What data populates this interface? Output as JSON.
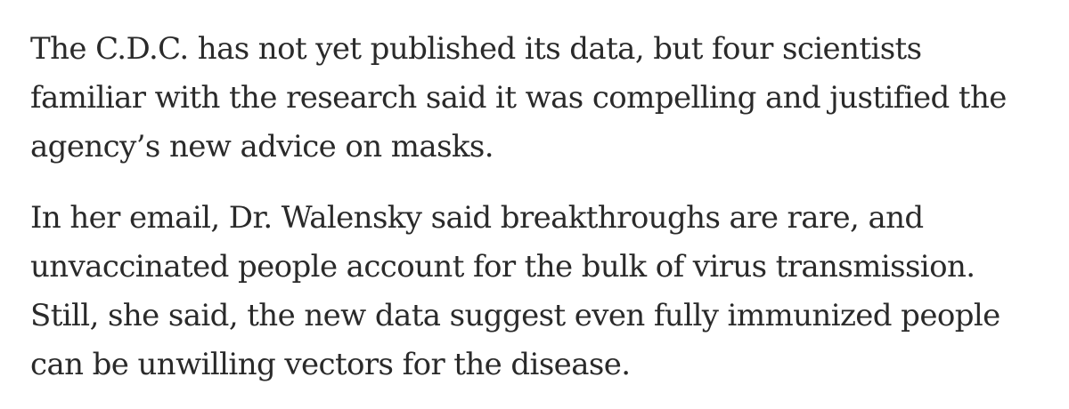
{
  "article": {
    "paragraphs": [
      {
        "lines": [
          "The C.D.C. has not yet published its data, but four scientists",
          "familiar with the research said it was compelling and justified the",
          "agency’s new advice on masks."
        ]
      },
      {
        "lines": [
          "In her email, Dr. Walensky said breakthroughs are rare, and",
          "unvaccinated people account for the bulk of virus transmission.",
          "Still, she said, the new data suggest even fully immunized people",
          "can be unwilling vectors for the disease."
        ]
      }
    ]
  }
}
